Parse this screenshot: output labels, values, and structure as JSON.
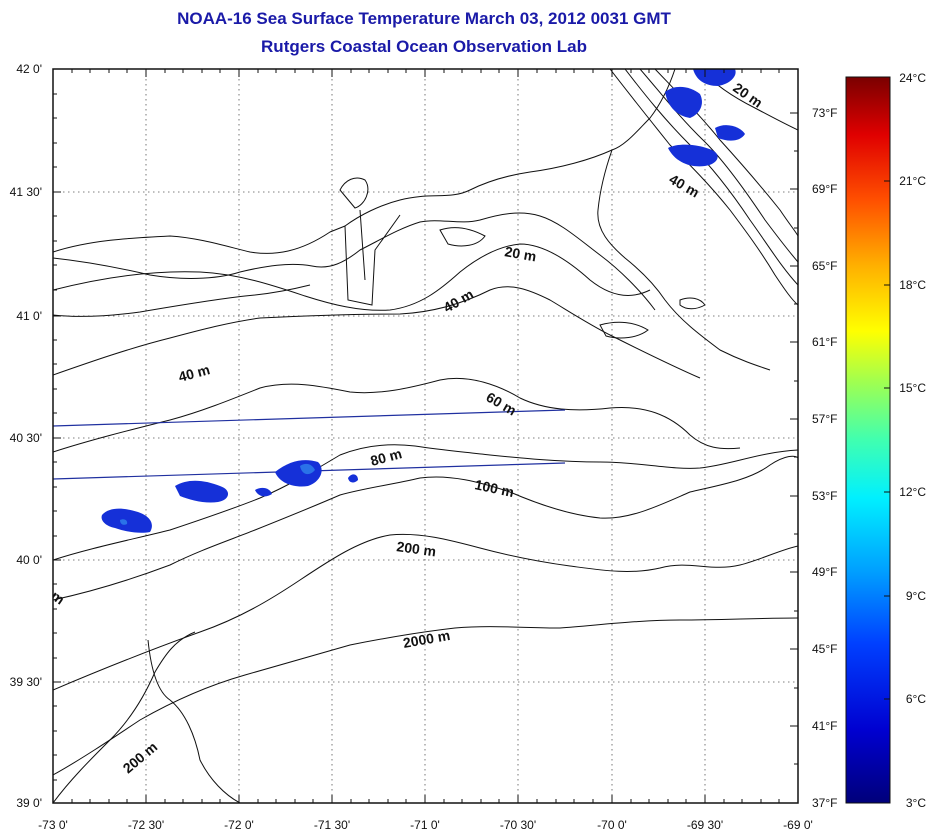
{
  "title": {
    "line1": "NOAA-16 Sea Surface Temperature March 03, 2012 0031 GMT",
    "line2": "Rutgers Coastal Ocean Observation Lab"
  },
  "map": {
    "lat_labels": [
      "42 0'",
      "41 30'",
      "41 0'",
      "40 30'",
      "40 0'",
      "39 30'",
      "39 0'"
    ],
    "lon_labels": [
      "-73 0'",
      "-72 30'",
      "-72 0'",
      "-71 30'",
      "-71 0'",
      "-70 30'",
      "-70 0'",
      "-69 30'",
      "-69 0'"
    ],
    "fahrenheit_labels": [
      "73°F",
      "69°F",
      "65°F",
      "61°F",
      "57°F",
      "53°F",
      "49°F",
      "45°F",
      "41°F",
      "37°F"
    ],
    "contour_labels": [
      "20 m",
      "40 m",
      "40 m",
      "60 m",
      "80 m",
      "100 m",
      "200 m",
      "2000 m",
      "200 m",
      "40 m",
      "20 m",
      "m"
    ]
  },
  "colorbar": {
    "celsius_labels": [
      "24°C",
      "21°C",
      "18°C",
      "15°C",
      "12°C",
      "9°C",
      "6°C",
      "3°C"
    ],
    "range_c": [
      3,
      24
    ],
    "colors": [
      "#00007a",
      "#0000d0",
      "#0040ff",
      "#00a0ff",
      "#00f0ff",
      "#40ffb0",
      "#a0ff50",
      "#ffff00",
      "#ffb000",
      "#ff5000",
      "#e00000",
      "#7a0000"
    ]
  },
  "colors": {
    "title": "#1a1aa8",
    "sst_cold": "#1530d8",
    "track_line": "#2030a0"
  }
}
